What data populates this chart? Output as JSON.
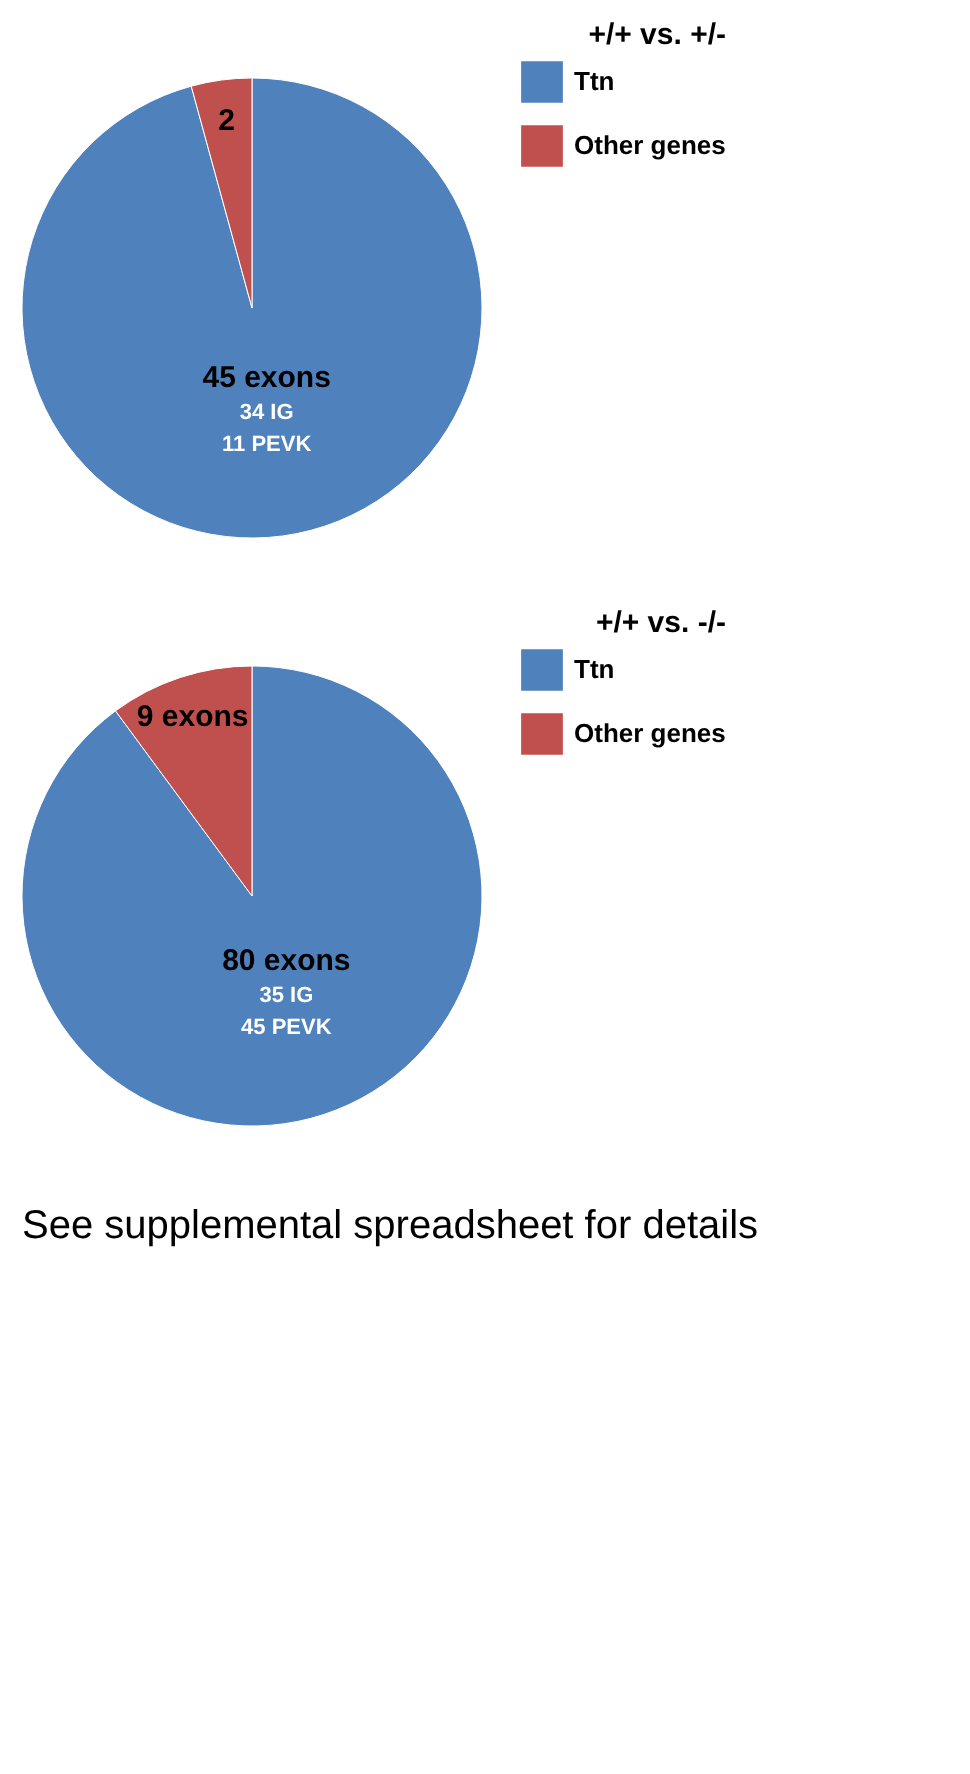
{
  "chart_data": [
    {
      "type": "pie",
      "title": "+/+ vs. +/-",
      "categories": [
        "Ttn",
        "Other genes"
      ],
      "values": [
        45,
        2
      ],
      "colors": [
        "#4f81bd",
        "#c0504d"
      ],
      "value_labels": [
        "45 exons",
        "2"
      ],
      "annotations": [
        "34 IG",
        "11 PEVK"
      ],
      "legend": "right"
    },
    {
      "type": "pie",
      "title": "+/+ vs. -/-",
      "categories": [
        "Ttn",
        "Other genes"
      ],
      "values": [
        80,
        9
      ],
      "colors": [
        "#4f81bd",
        "#c0504d"
      ],
      "value_labels": [
        "80 exons",
        "9 exons"
      ],
      "annotations": [
        "35 IG",
        "45 PEVK",
        "See supplemental spreadsheet for details"
      ],
      "legend": "right"
    }
  ]
}
